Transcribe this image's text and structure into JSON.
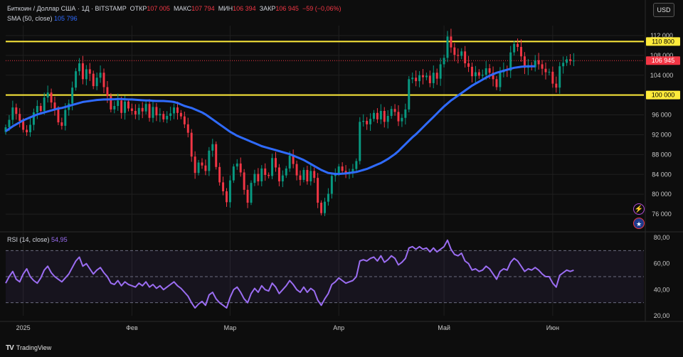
{
  "header": {
    "symbol": "Биткоин / Доллар США · 1Д · BITSTAMP",
    "open_label": "ОТКР",
    "open_value": "107 005",
    "high_label": "МАКС",
    "high_value": "107 794",
    "low_label": "МИН",
    "low_value": "106 394",
    "close_label": "ЗАКР",
    "close_value": "106 945",
    "change": "−59 (−0,06%)",
    "sma_label": "SMA (50, close)",
    "sma_value": "105 796",
    "currency_button": "USD"
  },
  "rsi_legend": {
    "label": "RSI (14, close)",
    "value": "54,95"
  },
  "footer": {
    "brand": "TradingView",
    "logo": "TV"
  },
  "colors": {
    "up": "#089981",
    "down": "#f23645",
    "sma": "#2f6bff",
    "rsi": "#9b6df2",
    "level": "#ffeb3b",
    "background": "#0d0d0d",
    "grid": "#1f1f1f"
  },
  "chart_data": [
    {
      "type": "candlestick",
      "title": "",
      "y_axis_side": "right",
      "ylim": [
        73000,
        114000
      ],
      "y_ticks": [
        76000,
        80000,
        84000,
        88000,
        92000,
        96000,
        100000,
        104000,
        108000,
        112000
      ],
      "y_tick_labels": [
        "76 000",
        "80 000",
        "84 000",
        "88 000",
        "92 000",
        "96 000",
        "100 000",
        "104 000",
        "108 000",
        "112 000"
      ],
      "x_ticks": [
        {
          "day": 5,
          "label": "2025"
        },
        {
          "day": 36,
          "label": "Фев"
        },
        {
          "day": 64,
          "label": "Мар"
        },
        {
          "day": 95,
          "label": "Апр"
        },
        {
          "day": 125,
          "label": "Май"
        },
        {
          "day": 156,
          "label": "Июн"
        }
      ],
      "x_range_days": [
        0,
        182
      ],
      "horizontal_levels": [
        {
          "value": 110800,
          "label": "110 800"
        },
        {
          "value": 100000,
          "label": "100 000"
        }
      ],
      "last_price": {
        "value": 106945,
        "label": "106 945"
      },
      "price_series": [
        93500,
        95000,
        97500,
        96200,
        94800,
        93000,
        92500,
        94000,
        96500,
        97800,
        96800,
        99500,
        100500,
        98500,
        97200,
        94500,
        93800,
        97000,
        98300,
        101500,
        104800,
        106400,
        103200,
        105200,
        104300,
        101800,
        103500,
        104500,
        101600,
        99800,
        97100,
        97800,
        98900,
        96400,
        98700,
        97300,
        96800,
        96100,
        97400,
        96700,
        98200,
        95400,
        97600,
        95900,
        96200,
        95100,
        95800,
        96300,
        97500,
        96400,
        95700,
        94100,
        92400,
        87600,
        84300,
        86400,
        85800,
        84700,
        88800,
        90100,
        85500,
        82400,
        80600,
        78400,
        82800,
        85600,
        86200,
        84400,
        80900,
        78300,
        82300,
        84100,
        82600,
        85200,
        83900,
        83700,
        87300,
        85400,
        82600,
        83800,
        85200,
        87800,
        86100,
        83800,
        82900,
        84900,
        82600,
        84700,
        83300,
        78300,
        76200,
        78500,
        80100,
        83700,
        84200,
        85600,
        84700,
        84100,
        84500,
        85100,
        86700,
        94600,
        94800,
        94100,
        95200,
        96400,
        95100,
        96800,
        94600,
        95800,
        97200,
        96600,
        94700,
        95400,
        97100,
        103200,
        103500,
        102800,
        104000,
        103600,
        103900,
        102400,
        104500,
        103300,
        106200,
        107500,
        111800,
        109600,
        108100,
        107900,
        108800,
        106400,
        105700,
        103800,
        104600,
        103900,
        104100,
        105400,
        104500,
        103200,
        101600,
        104600,
        105100,
        104900,
        108600,
        110300,
        109700,
        107800,
        105500,
        106000,
        105600,
        107000,
        106200,
        105300,
        104600,
        104700,
        102300,
        101500,
        105800,
        106500,
        107200,
        106900,
        106945
      ],
      "sma_series": [
        92700,
        93200,
        93700,
        94100,
        94500,
        94900,
        95200,
        95500,
        95800,
        96100,
        96300,
        96500,
        96700,
        96900,
        97100,
        97300,
        97400,
        97600,
        97800,
        98000,
        98200,
        98400,
        98600,
        98700,
        98800,
        98900,
        99000,
        99050,
        99100,
        99100,
        99150,
        99150,
        99200,
        99200,
        99150,
        99100,
        99100,
        99050,
        99000,
        98950,
        98900,
        98900,
        98850,
        98800,
        98800,
        98800,
        98750,
        98700,
        98600,
        98400,
        98100,
        97800,
        97600,
        97400,
        97100,
        96800,
        96500,
        96100,
        95600,
        95100,
        94600,
        94100,
        93600,
        93100,
        92600,
        92200,
        91800,
        91500,
        91200,
        90900,
        90600,
        90300,
        90000,
        89700,
        89500,
        89300,
        89100,
        88900,
        88700,
        88500,
        88300,
        88100,
        87800,
        87500,
        87200,
        86900,
        86500,
        86100,
        85700,
        85300,
        84900,
        84600,
        84300,
        84200,
        84100,
        84100,
        84150,
        84200,
        84300,
        84400,
        84500,
        84700,
        84900,
        85100,
        85400,
        85700,
        86000,
        86300,
        86700,
        87100,
        87600,
        88100,
        88700,
        89400,
        90100,
        90800,
        91500,
        92100,
        92800,
        93500,
        94200,
        94900,
        95600,
        96300,
        97000,
        97700,
        98300,
        98900,
        99400,
        99900,
        100400,
        100900,
        101400,
        101900,
        102300,
        102700,
        103100,
        103500,
        103900,
        104200,
        104500,
        104700,
        104900,
        105100,
        105300,
        105500,
        105600,
        105700,
        105750,
        105780,
        105790,
        105796
      ]
    },
    {
      "type": "line",
      "title": "",
      "ylim": [
        20,
        80
      ],
      "y_ticks": [
        20,
        40,
        60,
        80
      ],
      "y_tick_labels": [
        "20,00",
        "40,00",
        "60,00",
        "80,00"
      ],
      "bands": [
        30,
        50,
        70
      ],
      "series": [
        {
          "name": "RSI (14, close)",
          "values": [
            45,
            50,
            54,
            48,
            46,
            52,
            56,
            50,
            47,
            45,
            49,
            55,
            58,
            53,
            50,
            48,
            46,
            49,
            52,
            57,
            62,
            65,
            58,
            60,
            56,
            52,
            55,
            57,
            53,
            50,
            45,
            44,
            47,
            43,
            46,
            44,
            43,
            42,
            45,
            43,
            46,
            42,
            44,
            41,
            43,
            40,
            42,
            44,
            46,
            43,
            41,
            38,
            35,
            30,
            26,
            29,
            31,
            28,
            36,
            38,
            33,
            30,
            28,
            26,
            34,
            40,
            42,
            38,
            33,
            30,
            37,
            41,
            38,
            43,
            40,
            39,
            45,
            42,
            37,
            40,
            43,
            47,
            44,
            40,
            38,
            42,
            38,
            41,
            39,
            32,
            28,
            33,
            37,
            44,
            46,
            49,
            47,
            45,
            46,
            47,
            50,
            62,
            63,
            62,
            64,
            65,
            62,
            66,
            61,
            63,
            66,
            64,
            59,
            61,
            64,
            72,
            73,
            71,
            73,
            71,
            72,
            69,
            72,
            69,
            71,
            73,
            78,
            71,
            67,
            66,
            68,
            62,
            60,
            55,
            56,
            54,
            55,
            58,
            56,
            52,
            48,
            54,
            56,
            55,
            61,
            64,
            62,
            58,
            54,
            56,
            55,
            57,
            55,
            52,
            50,
            50,
            45,
            42,
            51,
            53,
            55,
            54,
            54.95
          ]
        }
      ]
    }
  ]
}
